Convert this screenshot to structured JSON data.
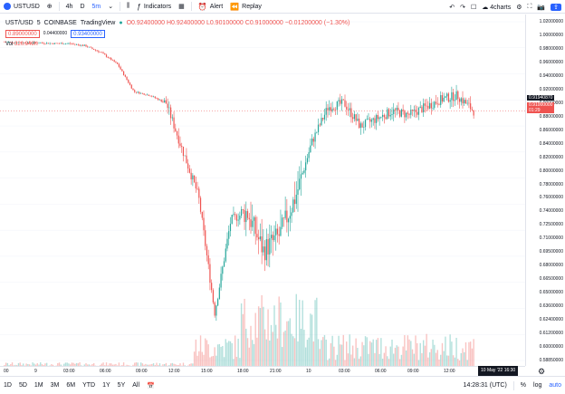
{
  "toolbar": {
    "symbol": "USTUSD",
    "intervals": [
      "4h",
      "D",
      "5m"
    ],
    "active_interval": "5m",
    "indicators_label": "Indicators",
    "alert_label": "Alert",
    "replay_label": "Replay",
    "layout_name": "4charts"
  },
  "legend": {
    "pair": "UST/USD",
    "interval": "5",
    "exchange": "COINBASE",
    "source": "TradingView",
    "ohlc": "O0.92400000 H0.92400000 L0.90100000 C0.91000000 −0.01200000 (−1.30%)",
    "bid": "0.89000000",
    "spread": "0.04400000",
    "ask": "0.93400000",
    "vol_label": "Vol",
    "vol_value": "320.949K"
  },
  "price_axis": {
    "labels": [
      "1.02000000",
      "1.00000000",
      "0.98000000",
      "0.96000000",
      "0.94000000",
      "0.92000000",
      "0.90000000",
      "0.88000000",
      "0.86000000",
      "0.84000000",
      "0.82000000",
      "0.80000000",
      "0.78000000",
      "0.76000000",
      "0.74000000",
      "0.72500000",
      "0.71000000",
      "0.69500000",
      "0.68000000",
      "0.66500000",
      "0.65000000",
      "0.63600000",
      "0.62400000",
      "0.61200000",
      "0.60000000",
      "0.58850000"
    ],
    "tag_dark": "0.91940870",
    "tag_red": "0.91000000",
    "tag_red_sub": "01:29"
  },
  "time_axis": {
    "labels": [
      "00",
      "9",
      "03:00",
      "06:00",
      "09:00",
      "12:00",
      "15:00",
      "18:00",
      "21:00",
      "10",
      "03:00",
      "06:00",
      "09:00",
      "12:00"
    ],
    "crosshair": "10 May '22   16:30"
  },
  "bottom_bar": {
    "ranges": [
      "1D",
      "5D",
      "1M",
      "3M",
      "6M",
      "YTD",
      "1Y",
      "5Y",
      "All"
    ],
    "clock": "14:28:31 (UTC)",
    "percent": "%",
    "log": "log",
    "auto": "auto"
  },
  "chart_data": {
    "type": "candlestick",
    "description_units": "USD",
    "ylim": [
      0.5885,
      1.025
    ],
    "x": [
      "00:00",
      "03:00",
      "06:00",
      "09:00",
      "12:00",
      "15:00",
      "18:00",
      "19:00",
      "20:00",
      "21:00",
      "22:00",
      "23:00",
      "10 00:00",
      "00:30",
      "01:00",
      "02:00",
      "03:00",
      "04:00",
      "05:00",
      "06:00",
      "07:00",
      "08:00",
      "09:00",
      "10:00",
      "11:00",
      "12:00",
      "13:00",
      "14:00",
      "15:00",
      "16:30"
    ],
    "close": [
      0.999,
      0.998,
      0.998,
      0.997,
      0.997,
      0.994,
      0.985,
      0.97,
      0.935,
      0.93,
      0.92,
      0.86,
      0.8,
      0.65,
      0.77,
      0.78,
      0.73,
      0.75,
      0.8,
      0.87,
      0.915,
      0.92,
      0.89,
      0.9,
      0.91,
      0.905,
      0.915,
      0.925,
      0.93,
      0.91
    ]
  },
  "colors": {
    "up": "#26a69a",
    "down": "#ef5350",
    "accent": "#2962ff"
  }
}
